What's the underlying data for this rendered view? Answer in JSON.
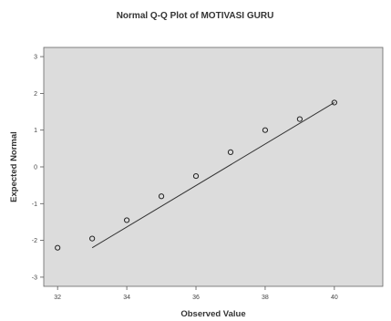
{
  "chart_data": {
    "type": "scatter",
    "title": "Normal Q-Q Plot of MOTIVASI GURU",
    "xlabel": "Observed Value",
    "ylabel": "Expected Normal",
    "xlim": [
      32,
      41
    ],
    "ylim": [
      -3,
      3
    ],
    "x_ticks": [
      32,
      34,
      36,
      38,
      40
    ],
    "x_tick_labels": [
      "32",
      "34",
      "36",
      "38",
      "40"
    ],
    "y_ticks": [
      3,
      2,
      1,
      0,
      -1,
      -2,
      -3
    ],
    "y_tick_labels": [
      "3",
      "2",
      "1",
      "0",
      "-1",
      "-2",
      "-3"
    ],
    "grid": false,
    "plot_background": "#dcdcdc",
    "point_color": "#222222",
    "line_color": "#333333",
    "reference_line": {
      "x": [
        33,
        40
      ],
      "y": [
        -2.2,
        1.75
      ]
    },
    "points": [
      {
        "x": 32,
        "y": -2.2
      },
      {
        "x": 33,
        "y": -1.95
      },
      {
        "x": 34,
        "y": -1.45
      },
      {
        "x": 35,
        "y": -0.8
      },
      {
        "x": 36,
        "y": -0.25
      },
      {
        "x": 37,
        "y": 0.4
      },
      {
        "x": 38,
        "y": 1.0
      },
      {
        "x": 39,
        "y": 1.3
      },
      {
        "x": 40,
        "y": 1.75
      }
    ]
  }
}
